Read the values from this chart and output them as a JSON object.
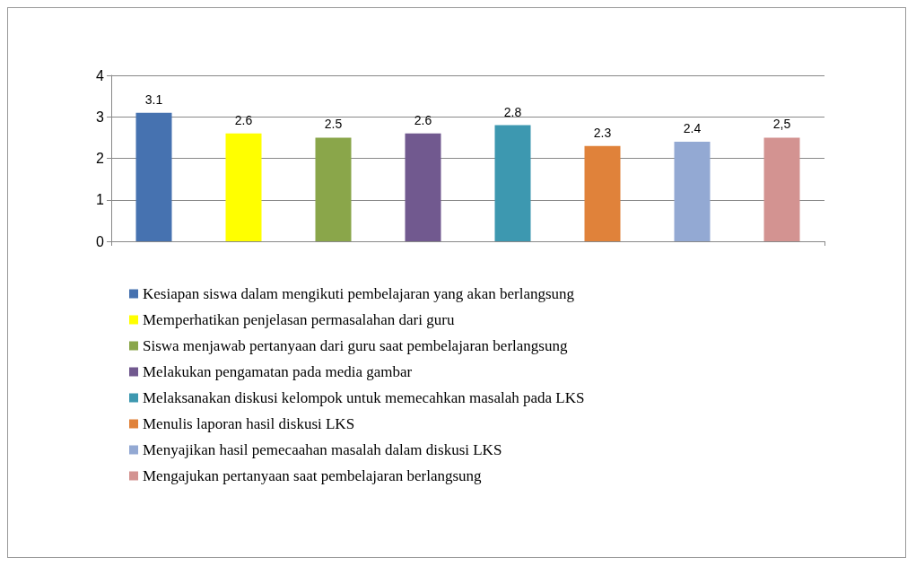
{
  "chart_data": {
    "type": "bar",
    "categories": [
      null
    ],
    "series": [
      {
        "name": "Kesiapan siswa dalam mengikuti pembelajaran yang akan berlangsung",
        "color": "#4672b0",
        "values": [
          3.1
        ],
        "value_labels": [
          "3.1"
        ]
      },
      {
        "name": "Memperhatikan penjelasan permasalahan dari guru",
        "color": "#ffff00",
        "values": [
          2.6
        ],
        "value_labels": [
          "2.6"
        ]
      },
      {
        "name": "Siswa menjawab pertanyaan dari guru saat pembelajaran berlangsung",
        "color": "#8aa64a",
        "values": [
          2.5
        ],
        "value_labels": [
          "2.5"
        ]
      },
      {
        "name": "Melakukan pengamatan pada media gambar",
        "color": "#71598f",
        "values": [
          2.6
        ],
        "value_labels": [
          "2.6"
        ]
      },
      {
        "name": "Melaksanakan diskusi kelompok untuk memecahkan masalah pada LKS",
        "color": "#3d98b0",
        "values": [
          2.8
        ],
        "value_labels": [
          "2.8"
        ]
      },
      {
        "name": "Menulis laporan hasil diskusi LKS",
        "color": "#e0823a",
        "values": [
          2.3
        ],
        "value_labels": [
          "2.3"
        ]
      },
      {
        "name": "Menyajikan hasil pemecaahan masalah dalam diskusi LKS",
        "color": "#93a9d3",
        "values": [
          2.4
        ],
        "value_labels": [
          "2.4"
        ]
      },
      {
        "name": "Mengajukan pertanyaan saat pembelajaran berlangsung",
        "color": "#d39391",
        "values": [
          2.5
        ],
        "value_labels": [
          "2,5"
        ]
      }
    ],
    "ylim": [
      0,
      4
    ],
    "yticks": [
      0,
      1,
      2,
      3,
      4
    ],
    "grid": "y",
    "legend": "bottom"
  }
}
